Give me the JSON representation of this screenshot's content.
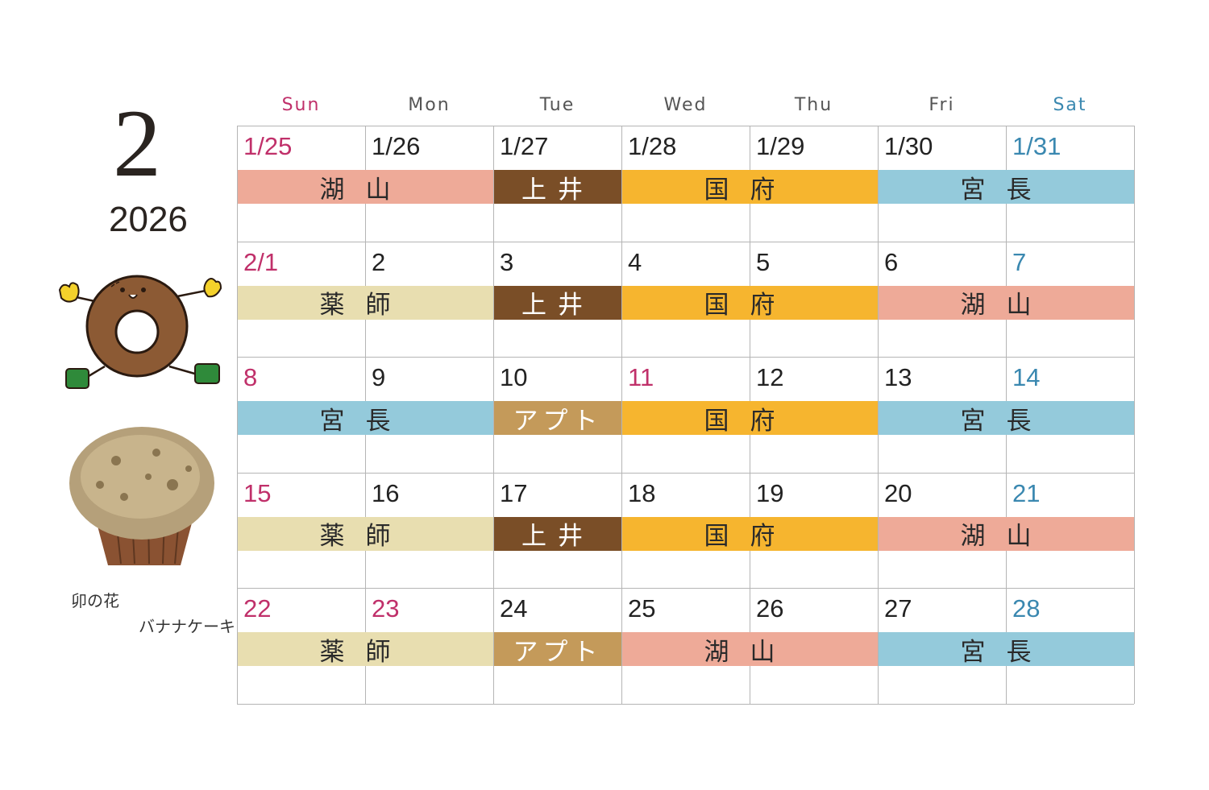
{
  "header": {
    "month": "2",
    "year": "2026"
  },
  "weekdays": [
    "Sun",
    "Mon",
    "Tue",
    "Wed",
    "Thu",
    "Fri",
    "Sat"
  ],
  "colors": {
    "salmon": "#eeaa98",
    "brown": "#7a4e27",
    "orange": "#f6b52f",
    "blue": "#94cadb",
    "cream": "#e8deb0",
    "tan": "#c49a5a",
    "sunday": "#c0306a",
    "saturday": "#3a88b0"
  },
  "weeks": [
    {
      "dates": [
        "1/25",
        "1/26",
        "1/27",
        "1/28",
        "1/29",
        "1/30",
        "1/31"
      ],
      "events": [
        {
          "label": "湖山",
          "start": 0,
          "span": 2,
          "color": "salmon"
        },
        {
          "label": "上井",
          "start": 2,
          "span": 1,
          "color": "brown"
        },
        {
          "label": "国府",
          "start": 3,
          "span": 2,
          "color": "orange"
        },
        {
          "label": "宮長",
          "start": 5,
          "span": 2,
          "color": "blue"
        }
      ]
    },
    {
      "dates": [
        "2/1",
        "2",
        "3",
        "4",
        "5",
        "6",
        "7"
      ],
      "events": [
        {
          "label": "薬師",
          "start": 0,
          "span": 2,
          "color": "cream"
        },
        {
          "label": "上井",
          "start": 2,
          "span": 1,
          "color": "brown"
        },
        {
          "label": "国府",
          "start": 3,
          "span": 2,
          "color": "orange"
        },
        {
          "label": "湖山",
          "start": 5,
          "span": 2,
          "color": "salmon"
        }
      ]
    },
    {
      "dates": [
        "8",
        "9",
        "10",
        "11",
        "12",
        "13",
        "14"
      ],
      "holidays": [
        3
      ],
      "events": [
        {
          "label": "宮長",
          "start": 0,
          "span": 2,
          "color": "blue"
        },
        {
          "label": "アプト",
          "start": 2,
          "span": 1,
          "color": "tan"
        },
        {
          "label": "国府",
          "start": 3,
          "span": 2,
          "color": "orange"
        },
        {
          "label": "宮長",
          "start": 5,
          "span": 2,
          "color": "blue"
        }
      ]
    },
    {
      "dates": [
        "15",
        "16",
        "17",
        "18",
        "19",
        "20",
        "21"
      ],
      "events": [
        {
          "label": "薬師",
          "start": 0,
          "span": 2,
          "color": "cream"
        },
        {
          "label": "上井",
          "start": 2,
          "span": 1,
          "color": "brown"
        },
        {
          "label": "国府",
          "start": 3,
          "span": 2,
          "color": "orange"
        },
        {
          "label": "湖山",
          "start": 5,
          "span": 2,
          "color": "salmon"
        }
      ]
    },
    {
      "dates": [
        "22",
        "23",
        "24",
        "25",
        "26",
        "27",
        "28"
      ],
      "holidays": [
        1
      ],
      "events": [
        {
          "label": "薬師",
          "start": 0,
          "span": 2,
          "color": "cream"
        },
        {
          "label": "アプト",
          "start": 2,
          "span": 1,
          "color": "tan"
        },
        {
          "label": "湖山",
          "start": 3,
          "span": 2,
          "color": "salmon"
        },
        {
          "label": "宮長",
          "start": 5,
          "span": 2,
          "color": "blue"
        }
      ]
    }
  ],
  "caption": {
    "line1": "卯の花",
    "line2": "バナナケーキ"
  }
}
